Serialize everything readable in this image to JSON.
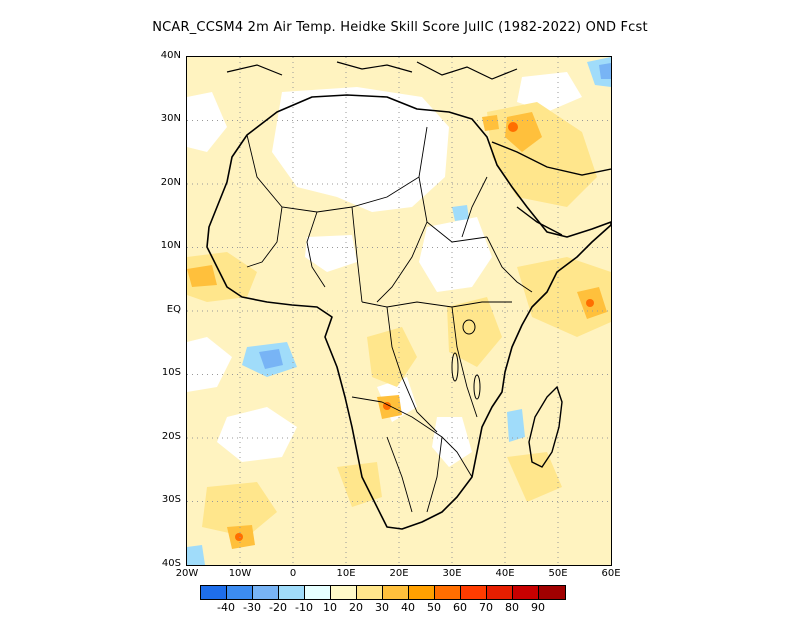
{
  "title": "NCAR_CCSM4  2m Air Temp. Heidke Skill Score JulIC (1982-2022) OND Fcst",
  "lat_labels": [
    "40N",
    "30N",
    "20N",
    "10N",
    "EQ",
    "10S",
    "20S",
    "30S",
    "40S"
  ],
  "lon_labels": [
    "20W",
    "10W",
    "0",
    "10E",
    "20E",
    "30E",
    "40E",
    "50E",
    "60E"
  ],
  "legend": {
    "colors": [
      "#1e6eeb",
      "#3c8cf0",
      "#78b4f5",
      "#a0dcfa",
      "#e6ffff",
      "#fffac8",
      "#ffe68c",
      "#ffc03c",
      "#ffa000",
      "#ff6e00",
      "#ff3c00",
      "#e61e00",
      "#c80000",
      "#a00000"
    ],
    "labels": [
      "-40",
      "-30",
      "-20",
      "-10",
      "10",
      "20",
      "30",
      "40",
      "50",
      "60",
      "70",
      "80",
      "90"
    ]
  },
  "map_colors": {
    "light_yellow": "#fff3c0",
    "pale_yellow": "#fffac8",
    "yellow": "#ffe68c",
    "orange": "#ffc03c",
    "dark_orange": "#ffa000",
    "red_orange": "#ff6e00",
    "light_blue": "#a0dcfa",
    "blue": "#78b4f5"
  }
}
